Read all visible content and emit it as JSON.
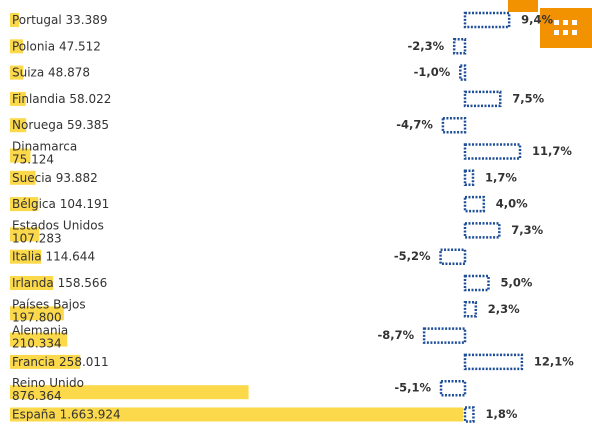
{
  "chart_data": {
    "type": "bar",
    "categories": [
      "Portugal",
      "Polonia",
      "Suiza",
      "Finlandia",
      "Noruega",
      "Dinamarca",
      "Suecia",
      "Bélgica",
      "Estados Unidos",
      "Italia",
      "Irlanda",
      "Países Bajos",
      "Alemania",
      "Francia",
      "Reino Unido",
      "España"
    ],
    "series": [
      {
        "color": "#fcd94a",
        "values": [
          33389,
          47512,
          48878,
          58022,
          59385,
          75124,
          93882,
          104191,
          107283,
          114644,
          158566,
          197800,
          210334,
          258011,
          876364,
          1663924
        ],
        "value_labels": [
          "33.389",
          "47.512",
          "48.878",
          "58.022",
          "59.385",
          "75.124",
          "93.882",
          "104.191",
          "107.283",
          "114.644",
          "158.566",
          "197.800",
          "210.334",
          "258.011",
          "876.364",
          "1.663.924"
        ]
      },
      {
        "color": "#1f4e99",
        "values": [
          9.4,
          -2.3,
          -1.0,
          7.5,
          -4.7,
          11.7,
          1.7,
          4.0,
          7.3,
          -5.2,
          5.0,
          2.3,
          -8.7,
          12.1,
          -5.1,
          1.8
        ],
        "value_labels": [
          "9,4%",
          "-2,3%",
          "-1,0%",
          "7,5%",
          "-4,7%",
          "11,7%",
          "1,7%",
          "4,0%",
          "7,3%",
          "-5,2%",
          "5,0%",
          "2,3%",
          "-8,7%",
          "12,1%",
          "-5,1%",
          "1,8%"
        ]
      }
    ]
  }
}
